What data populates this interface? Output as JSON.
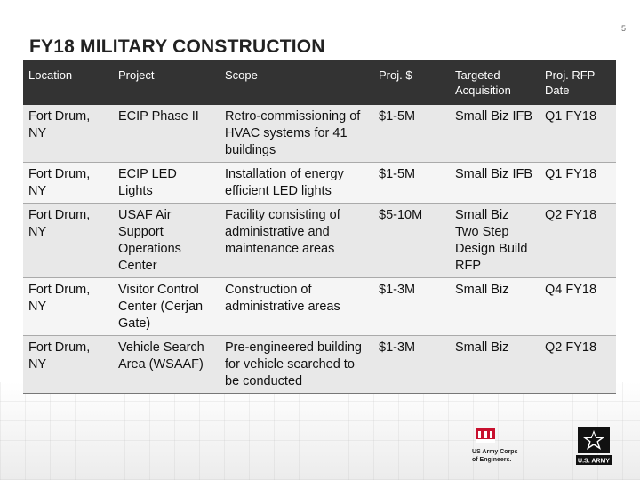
{
  "page_number": "5",
  "title": "FY18 MILITARY CONSTRUCTION",
  "table": {
    "headers": {
      "location": "Location",
      "project": "Project",
      "scope": "Scope",
      "proj_cost": "Proj. $",
      "acquisition": "Targeted Acquisition",
      "rfp_date": "Proj. RFP Date"
    },
    "rows": [
      {
        "location": "Fort Drum, NY",
        "project": "ECIP Phase II",
        "scope": "Retro-commissioning of HVAC systems for 41 buildings",
        "proj_cost": "$1-5M",
        "acquisition": "Small Biz IFB",
        "rfp_date": "Q1 FY18"
      },
      {
        "location": "Fort Drum, NY",
        "project": "ECIP LED Lights",
        "scope": "Installation of energy efficient LED lights",
        "proj_cost": "$1-5M",
        "acquisition": "Small Biz IFB",
        "rfp_date": "Q1 FY18"
      },
      {
        "location": "Fort Drum, NY",
        "project": "USAF Air Support Operations Center",
        "scope": "Facility consisting of administrative and maintenance areas",
        "proj_cost": "$5-10M",
        "acquisition": "Small Biz Two Step Design Build RFP",
        "rfp_date": "Q2 FY18"
      },
      {
        "location": "Fort Drum, NY",
        "project": "Visitor Control Center (Cerjan Gate)",
        "scope": "Construction of administrative areas",
        "proj_cost": "$1-3M",
        "acquisition": "Small Biz",
        "rfp_date": "Q4 FY18"
      },
      {
        "location": "Fort Drum, NY",
        "project": "Vehicle Search Area (WSAAF)",
        "scope": "Pre-engineered building for vehicle searched to be conducted",
        "proj_cost": "$1-3M",
        "acquisition": "Small Biz",
        "rfp_date": "Q2 FY18"
      }
    ]
  },
  "logos": {
    "corps_line1": "US Army Corps",
    "corps_line2": "of Engineers.",
    "army_text": "U.S. ARMY"
  },
  "colors": {
    "header_bg": "#333333",
    "corps_red": "#c8102e",
    "army_black": "#111111"
  }
}
